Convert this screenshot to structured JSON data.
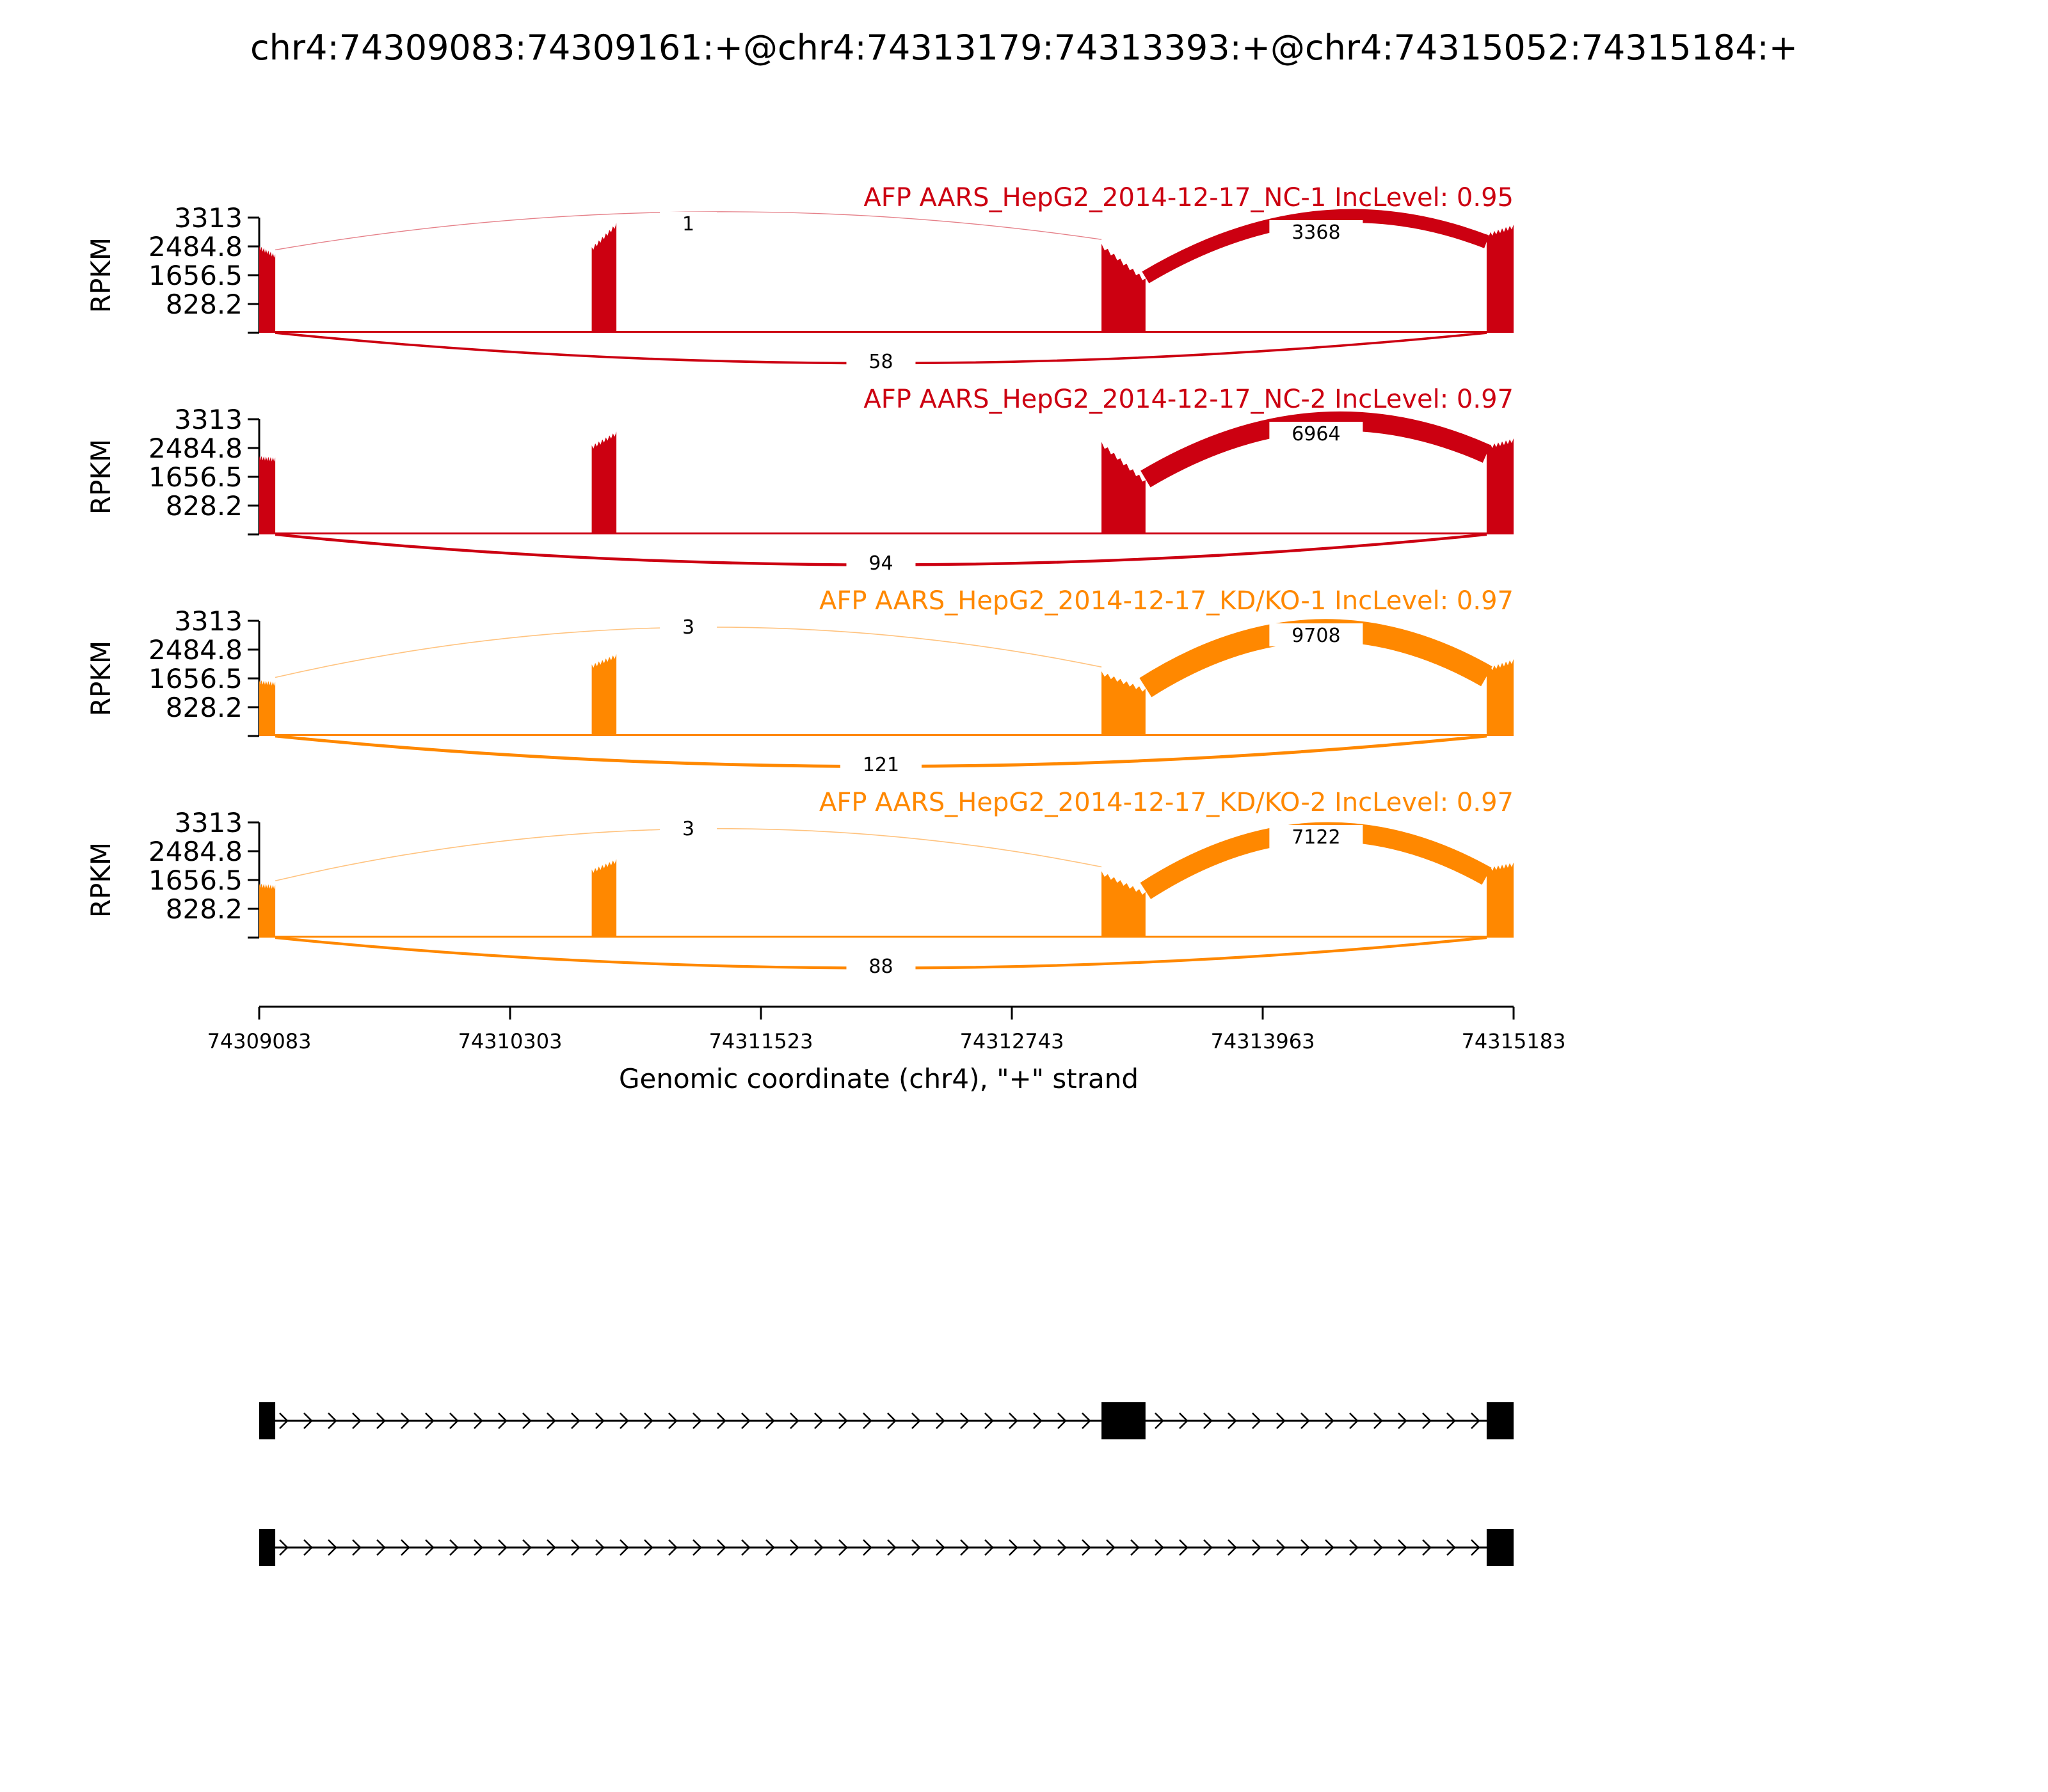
{
  "chart_data": {
    "type": "area",
    "title": "chr4:74309083:74309161:+@chr4:74313179:74313393:+@chr4:74315052:74315184:+",
    "xlabel": "Genomic coordinate (chr4), \"+\" strand",
    "ylabel": "RPKM",
    "xlim": [
      74309083,
      74315183
    ],
    "x_ticks": [
      "74309083",
      "74310303",
      "74311523",
      "74312743",
      "74313963",
      "74315183"
    ],
    "ylim": [
      0,
      3313
    ],
    "y_ticks": [
      "3313",
      "2484.8",
      "1656.5",
      "828.2"
    ],
    "exons": [
      {
        "start": 74309083,
        "end": 74309161
      },
      {
        "start": 74310700,
        "end": 74310820
      },
      {
        "start": 74313179,
        "end": 74313393
      },
      {
        "start": 74315052,
        "end": 74315184
      }
    ],
    "panels": [
      {
        "label": "AFP AARS_HepG2_2014-12-17_NC-1 IncLevel: 0.95",
        "color": "#cc0011",
        "exon_peaks": [
          {
            "rise": 2450,
            "fall": 2200
          },
          {
            "rise": 2400,
            "fall": 3100
          },
          {
            "rise": 2500,
            "fall": 1500
          },
          {
            "rise": 2800,
            "fall": 3050
          }
        ],
        "junctions": [
          {
            "start": 74309161,
            "end": 74315052,
            "count": "58",
            "side": "below"
          },
          {
            "start": 74309161,
            "end": 74313179,
            "count": "1",
            "side": "above"
          },
          {
            "start": 74313393,
            "end": 74315052,
            "count": "3368",
            "side": "above"
          }
        ]
      },
      {
        "label": "AFP AARS_HepG2_2014-12-17_NC-2 IncLevel: 0.97",
        "color": "#cc0011",
        "exon_peaks": [
          {
            "rise": 2200,
            "fall": 2150
          },
          {
            "rise": 2500,
            "fall": 2900
          },
          {
            "rise": 2600,
            "fall": 1500
          },
          {
            "rise": 2500,
            "fall": 2700
          }
        ],
        "junctions": [
          {
            "start": 74309161,
            "end": 74315052,
            "count": "94",
            "side": "below"
          },
          {
            "start": 74313393,
            "end": 74315052,
            "count": "6964",
            "side": "above"
          }
        ]
      },
      {
        "label": "AFP AARS_HepG2_2014-12-17_KD/KO-1 IncLevel: 0.97",
        "color": "#ff8800",
        "exon_peaks": [
          {
            "rise": 1550,
            "fall": 1500
          },
          {
            "rise": 2000,
            "fall": 2300
          },
          {
            "rise": 1800,
            "fall": 1300
          },
          {
            "rise": 1900,
            "fall": 2150
          }
        ],
        "junctions": [
          {
            "start": 74309161,
            "end": 74315052,
            "count": "121",
            "side": "below"
          },
          {
            "start": 74309161,
            "end": 74313179,
            "count": "3",
            "side": "above"
          },
          {
            "start": 74313393,
            "end": 74315052,
            "count": "9708",
            "side": "above"
          }
        ]
      },
      {
        "label": "AFP AARS_HepG2_2014-12-17_KD/KO-2 IncLevel: 0.97",
        "color": "#ff8800",
        "exon_peaks": [
          {
            "rise": 1500,
            "fall": 1450
          },
          {
            "rise": 1900,
            "fall": 2200
          },
          {
            "rise": 1850,
            "fall": 1250
          },
          {
            "rise": 1950,
            "fall": 2100
          }
        ],
        "junctions": [
          {
            "start": 74309161,
            "end": 74315052,
            "count": "88",
            "side": "below"
          },
          {
            "start": 74309161,
            "end": 74313179,
            "count": "3",
            "side": "above"
          },
          {
            "start": 74313393,
            "end": 74315052,
            "count": "7122",
            "side": "above"
          }
        ]
      }
    ],
    "isoforms": [
      {
        "exons": [
          [
            74309083,
            74309161
          ],
          [
            74313179,
            74313393
          ],
          [
            74315052,
            74315184
          ]
        ]
      },
      {
        "exons": [
          [
            74309083,
            74309161
          ],
          [
            74315052,
            74315184
          ]
        ]
      }
    ]
  }
}
